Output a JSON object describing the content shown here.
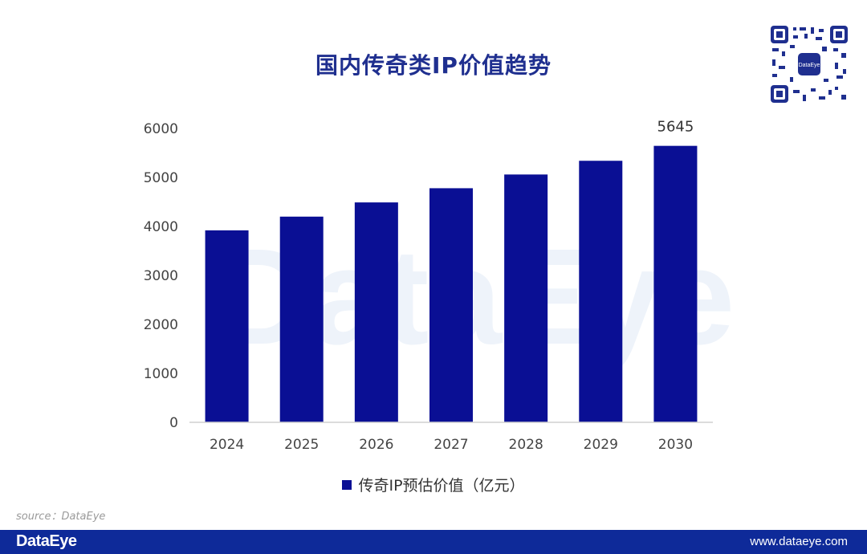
{
  "header": {
    "title": "国内传奇类IP价值趋势"
  },
  "watermark": {
    "text": "DataEye"
  },
  "qr": {
    "center_label": "DataEye"
  },
  "chart_data": {
    "type": "bar",
    "categories": [
      "2024",
      "2025",
      "2026",
      "2027",
      "2028",
      "2029",
      "2030"
    ],
    "series": [
      {
        "name": "传奇IP预估价值（亿元）",
        "values": [
          3920,
          4200,
          4490,
          4780,
          5060,
          5340,
          5645
        ]
      }
    ],
    "data_labels": [
      {
        "category": "2030",
        "text": "5645"
      }
    ],
    "ylim": [
      0,
      6000
    ],
    "yticks": [
      "0",
      "1000",
      "2000",
      "3000",
      "4000",
      "5000",
      "6000"
    ],
    "grid": false,
    "legend_position": "bottom",
    "bar_color": "#0a0f94"
  },
  "source": {
    "text": "source：DataEye"
  },
  "footer": {
    "logo": "DataEye",
    "url": "www.dataeye.com",
    "background": "#0e2a99"
  }
}
